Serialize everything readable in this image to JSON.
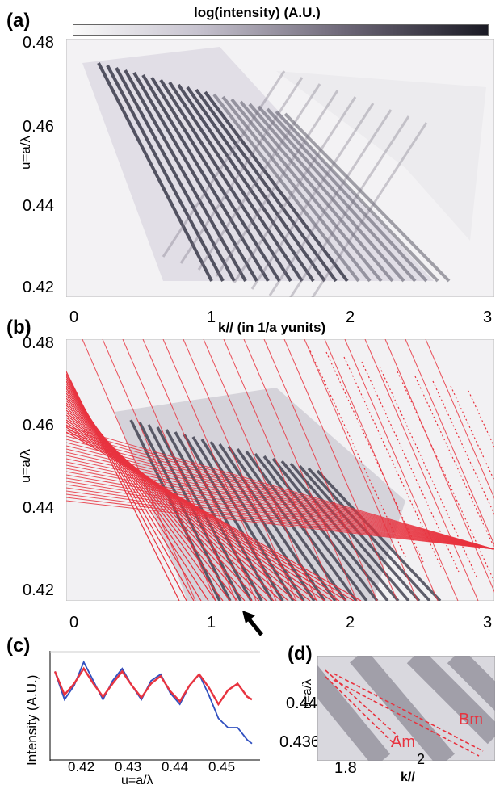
{
  "colorbar": {
    "label": "log(intensity)  (A.U.)"
  },
  "panels": {
    "a": {
      "label": "(a)",
      "ylabel": "u=a/λ",
      "yticks": [
        "0.48",
        "0.46",
        "0.44",
        "0.42"
      ],
      "xticks": [
        "0",
        "1",
        "2",
        "3"
      ],
      "xlabel": "k// (in 1/a yunits)"
    },
    "b": {
      "label": "(b)",
      "ylabel": "u=a/λ",
      "yticks": [
        "0.48",
        "0.46",
        "0.44",
        "0.42"
      ],
      "xticks": [
        "0",
        "1",
        "2",
        "3"
      ]
    },
    "c": {
      "label": "(c)",
      "ylabel": "Intensity (A.U.)",
      "xticks": [
        "0.42",
        "0.43",
        "0.44",
        "0.45"
      ],
      "xlabel": "u=a/λ"
    },
    "d": {
      "label": "(d)",
      "ylabel": "u=a/λ",
      "yticks": [
        "0.44",
        "0.436"
      ],
      "xticks": [
        "1.8",
        "2"
      ],
      "xlabel": "k//",
      "annotations": [
        "Am",
        "Bm"
      ]
    }
  },
  "colors": {
    "fit_red": "#e8333f",
    "data_blue": "#3050c0",
    "band_gray": "#3a3a4a"
  },
  "chart_data": [
    {
      "type": "heatmap",
      "panel": "a",
      "xlim": [
        0,
        3
      ],
      "ylim": [
        0.418,
        0.48
      ]
    },
    {
      "type": "heatmap",
      "panel": "b",
      "xlim": [
        0,
        3
      ],
      "ylim": [
        0.418,
        0.48
      ]
    },
    {
      "type": "line",
      "panel": "c",
      "xlim": [
        0.415,
        0.458
      ],
      "series": [
        {
          "color": "blue",
          "x": [
            0.416,
            0.418,
            0.42,
            0.422,
            0.424,
            0.426,
            0.428,
            0.43,
            0.432,
            0.434,
            0.436,
            0.438,
            0.44,
            0.442,
            0.444,
            0.446,
            0.448,
            0.45,
            0.452,
            0.454,
            0.456,
            0.457
          ],
          "y": [
            0.85,
            0.55,
            0.7,
            0.95,
            0.75,
            0.55,
            0.75,
            0.88,
            0.7,
            0.55,
            0.75,
            0.82,
            0.62,
            0.5,
            0.7,
            0.82,
            0.6,
            0.35,
            0.25,
            0.25,
            0.12,
            0.08
          ]
        },
        {
          "color": "red",
          "x": [
            0.416,
            0.418,
            0.42,
            0.422,
            0.424,
            0.426,
            0.428,
            0.43,
            0.432,
            0.434,
            0.436,
            0.438,
            0.44,
            0.442,
            0.444,
            0.446,
            0.448,
            0.45,
            0.452,
            0.454,
            0.456,
            0.457
          ],
          "y": [
            0.85,
            0.6,
            0.72,
            0.88,
            0.72,
            0.58,
            0.72,
            0.85,
            0.7,
            0.57,
            0.72,
            0.8,
            0.64,
            0.53,
            0.7,
            0.82,
            0.68,
            0.5,
            0.65,
            0.72,
            0.58,
            0.55
          ]
        }
      ]
    },
    {
      "type": "heatmap",
      "panel": "d",
      "xlim": [
        1.7,
        2.25
      ],
      "ylim": [
        0.435,
        0.4425
      ]
    }
  ]
}
